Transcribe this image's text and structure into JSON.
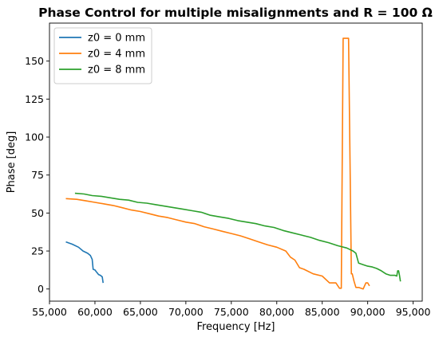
{
  "chart_data": {
    "type": "line",
    "title": "Phase Control for multiple misalignments and R = 100 Ω",
    "xlabel": "Frequency [Hz]",
    "ylabel": "Phase [deg]",
    "xlim": [
      55000,
      96000
    ],
    "ylim": [
      -8,
      175
    ],
    "xticks": [
      55000,
      60000,
      65000,
      70000,
      75000,
      80000,
      85000,
      90000,
      95000
    ],
    "xtick_labels": [
      "55,000",
      "60,000",
      "65,000",
      "70,000",
      "75,000",
      "80,000",
      "85,000",
      "90,000",
      "95,000"
    ],
    "yticks": [
      0,
      25,
      50,
      75,
      100,
      125,
      150
    ],
    "ytick_labels": [
      "0",
      "25",
      "50",
      "75",
      "100",
      "125",
      "150"
    ],
    "grid": false,
    "legend_position": "top-left",
    "series": [
      {
        "name": "z0 = 0 mm",
        "color": "#1f77b4",
        "x": [
          56800,
          57500,
          58200,
          58700,
          59200,
          59500,
          59700,
          59800,
          60000,
          60200,
          60400,
          60600,
          60800,
          60900
        ],
        "y": [
          31,
          29.5,
          27.5,
          25,
          23.5,
          22,
          19.5,
          13,
          12.5,
          11,
          9.5,
          9,
          8,
          4
        ]
      },
      {
        "name": "z0 = 4 mm",
        "color": "#ff7f0e",
        "x": [
          56800,
          58000,
          59000,
          60000,
          61000,
          62000,
          63000,
          64000,
          65000,
          66000,
          67000,
          68000,
          69000,
          70000,
          71000,
          72000,
          73000,
          74000,
          75000,
          76000,
          77000,
          78000,
          79000,
          80000,
          81000,
          81500,
          82000,
          82500,
          83000,
          84000,
          85000,
          85800,
          86000,
          86500,
          86900,
          87100,
          87300,
          87500,
          87900,
          88200,
          88300,
          88500,
          88700,
          89000,
          89500,
          89800,
          90000,
          90200
        ],
        "y": [
          59.5,
          59,
          58,
          57,
          56,
          55,
          53.5,
          52,
          51,
          49.5,
          48,
          47,
          45.5,
          44,
          43,
          41,
          39.5,
          38,
          36.5,
          35,
          33,
          31,
          29,
          27.5,
          25,
          21,
          19,
          14,
          13,
          10,
          8.5,
          4,
          4,
          4,
          0.5,
          0.5,
          165,
          165,
          165,
          10,
          10,
          5,
          1,
          1,
          0,
          4,
          4,
          2
        ]
      },
      {
        "name": "z0 = 8 mm",
        "color": "#2ca02c",
        "x": [
          57800,
          58800,
          59700,
          60700,
          61700,
          62700,
          63700,
          64700,
          65700,
          66700,
          67700,
          68700,
          69700,
          70700,
          71700,
          72700,
          73700,
          74700,
          75700,
          76700,
          77700,
          78700,
          79700,
          80700,
          81700,
          82700,
          83700,
          84700,
          85700,
          86700,
          87700,
          88400,
          88700,
          89000,
          89500,
          90000,
          90500,
          91000,
          91500,
          92000,
          92500,
          93000,
          93200,
          93300,
          93400,
          93500,
          93600
        ],
        "y": [
          63,
          62.5,
          61.5,
          61,
          60,
          59,
          58.5,
          57,
          56.5,
          55.5,
          54.5,
          53.5,
          52.5,
          51.5,
          50.5,
          48.5,
          47.5,
          46.5,
          45,
          44,
          43,
          41.5,
          40.5,
          38.5,
          37,
          35.5,
          34,
          32,
          30.5,
          28.5,
          27,
          25,
          23.5,
          17,
          16,
          15,
          14.5,
          13.5,
          12,
          10,
          9,
          9,
          8.5,
          12,
          12,
          9,
          5
        ]
      }
    ]
  }
}
